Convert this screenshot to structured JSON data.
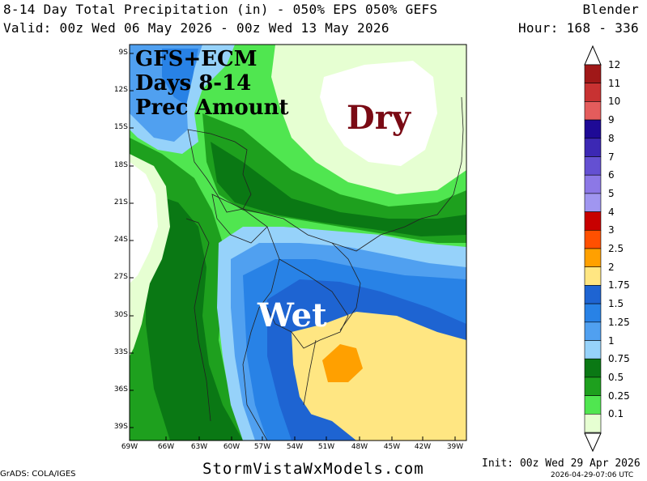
{
  "header": {
    "title_line": "8-14 Day Total Precipitation (in) - 050% EPS 050% GEFS",
    "model": "Blender",
    "valid_line": "Valid: 00z Wed 06 May 2026 - 00z Wed 13 May 2026",
    "hour_line": "Hour: 168 - 336"
  },
  "overlay": {
    "line1": "GFS+ECM",
    "line2": "Days 8-14",
    "line3": "Prec Amount",
    "dry": "Dry",
    "wet": "Wet"
  },
  "axes": {
    "lat_labels": [
      "9S",
      "12S",
      "15S",
      "18S",
      "21S",
      "24S",
      "27S",
      "30S",
      "33S",
      "36S",
      "39S"
    ],
    "lon_labels": [
      "69W",
      "66W",
      "63W",
      "60W",
      "57W",
      "54W",
      "51W",
      "48W",
      "45W",
      "42W",
      "39W"
    ]
  },
  "legend": {
    "levels": [
      {
        "label": "12",
        "color": "#a01818"
      },
      {
        "label": "11",
        "color": "#c83232"
      },
      {
        "label": "10",
        "color": "#e45c5c"
      },
      {
        "label": "9",
        "color": "#1e0a96"
      },
      {
        "label": "8",
        "color": "#3c28b4"
      },
      {
        "label": "7",
        "color": "#6450d2"
      },
      {
        "label": "6",
        "color": "#8c78e6"
      },
      {
        "label": "5",
        "color": "#a096f0"
      },
      {
        "label": "4",
        "color": "#c80000"
      },
      {
        "label": "3",
        "color": "#ff5000"
      },
      {
        "label": "2.5",
        "color": "#ffa000"
      },
      {
        "label": "2",
        "color": "#ffe682"
      },
      {
        "label": "1.75",
        "color": "#1e64d2"
      },
      {
        "label": "1.5",
        "color": "#2882e6"
      },
      {
        "label": "1.25",
        "color": "#50a0f0"
      },
      {
        "label": "1",
        "color": "#96d2fa"
      },
      {
        "label": "0.75",
        "color": "#0a7814"
      },
      {
        "label": "0.5",
        "color": "#1ea01e"
      },
      {
        "label": "0.25",
        "color": "#50e650"
      },
      {
        "label": "0.1",
        "color": "#e6ffd2"
      }
    ]
  },
  "footer": {
    "grads": "GrADS: COLA/IGES",
    "site": "StormVistaWxModels.com",
    "init": "Init: 00z Wed 29 Apr 2026",
    "stamp": "2026-04-29-07:06 UTC"
  }
}
